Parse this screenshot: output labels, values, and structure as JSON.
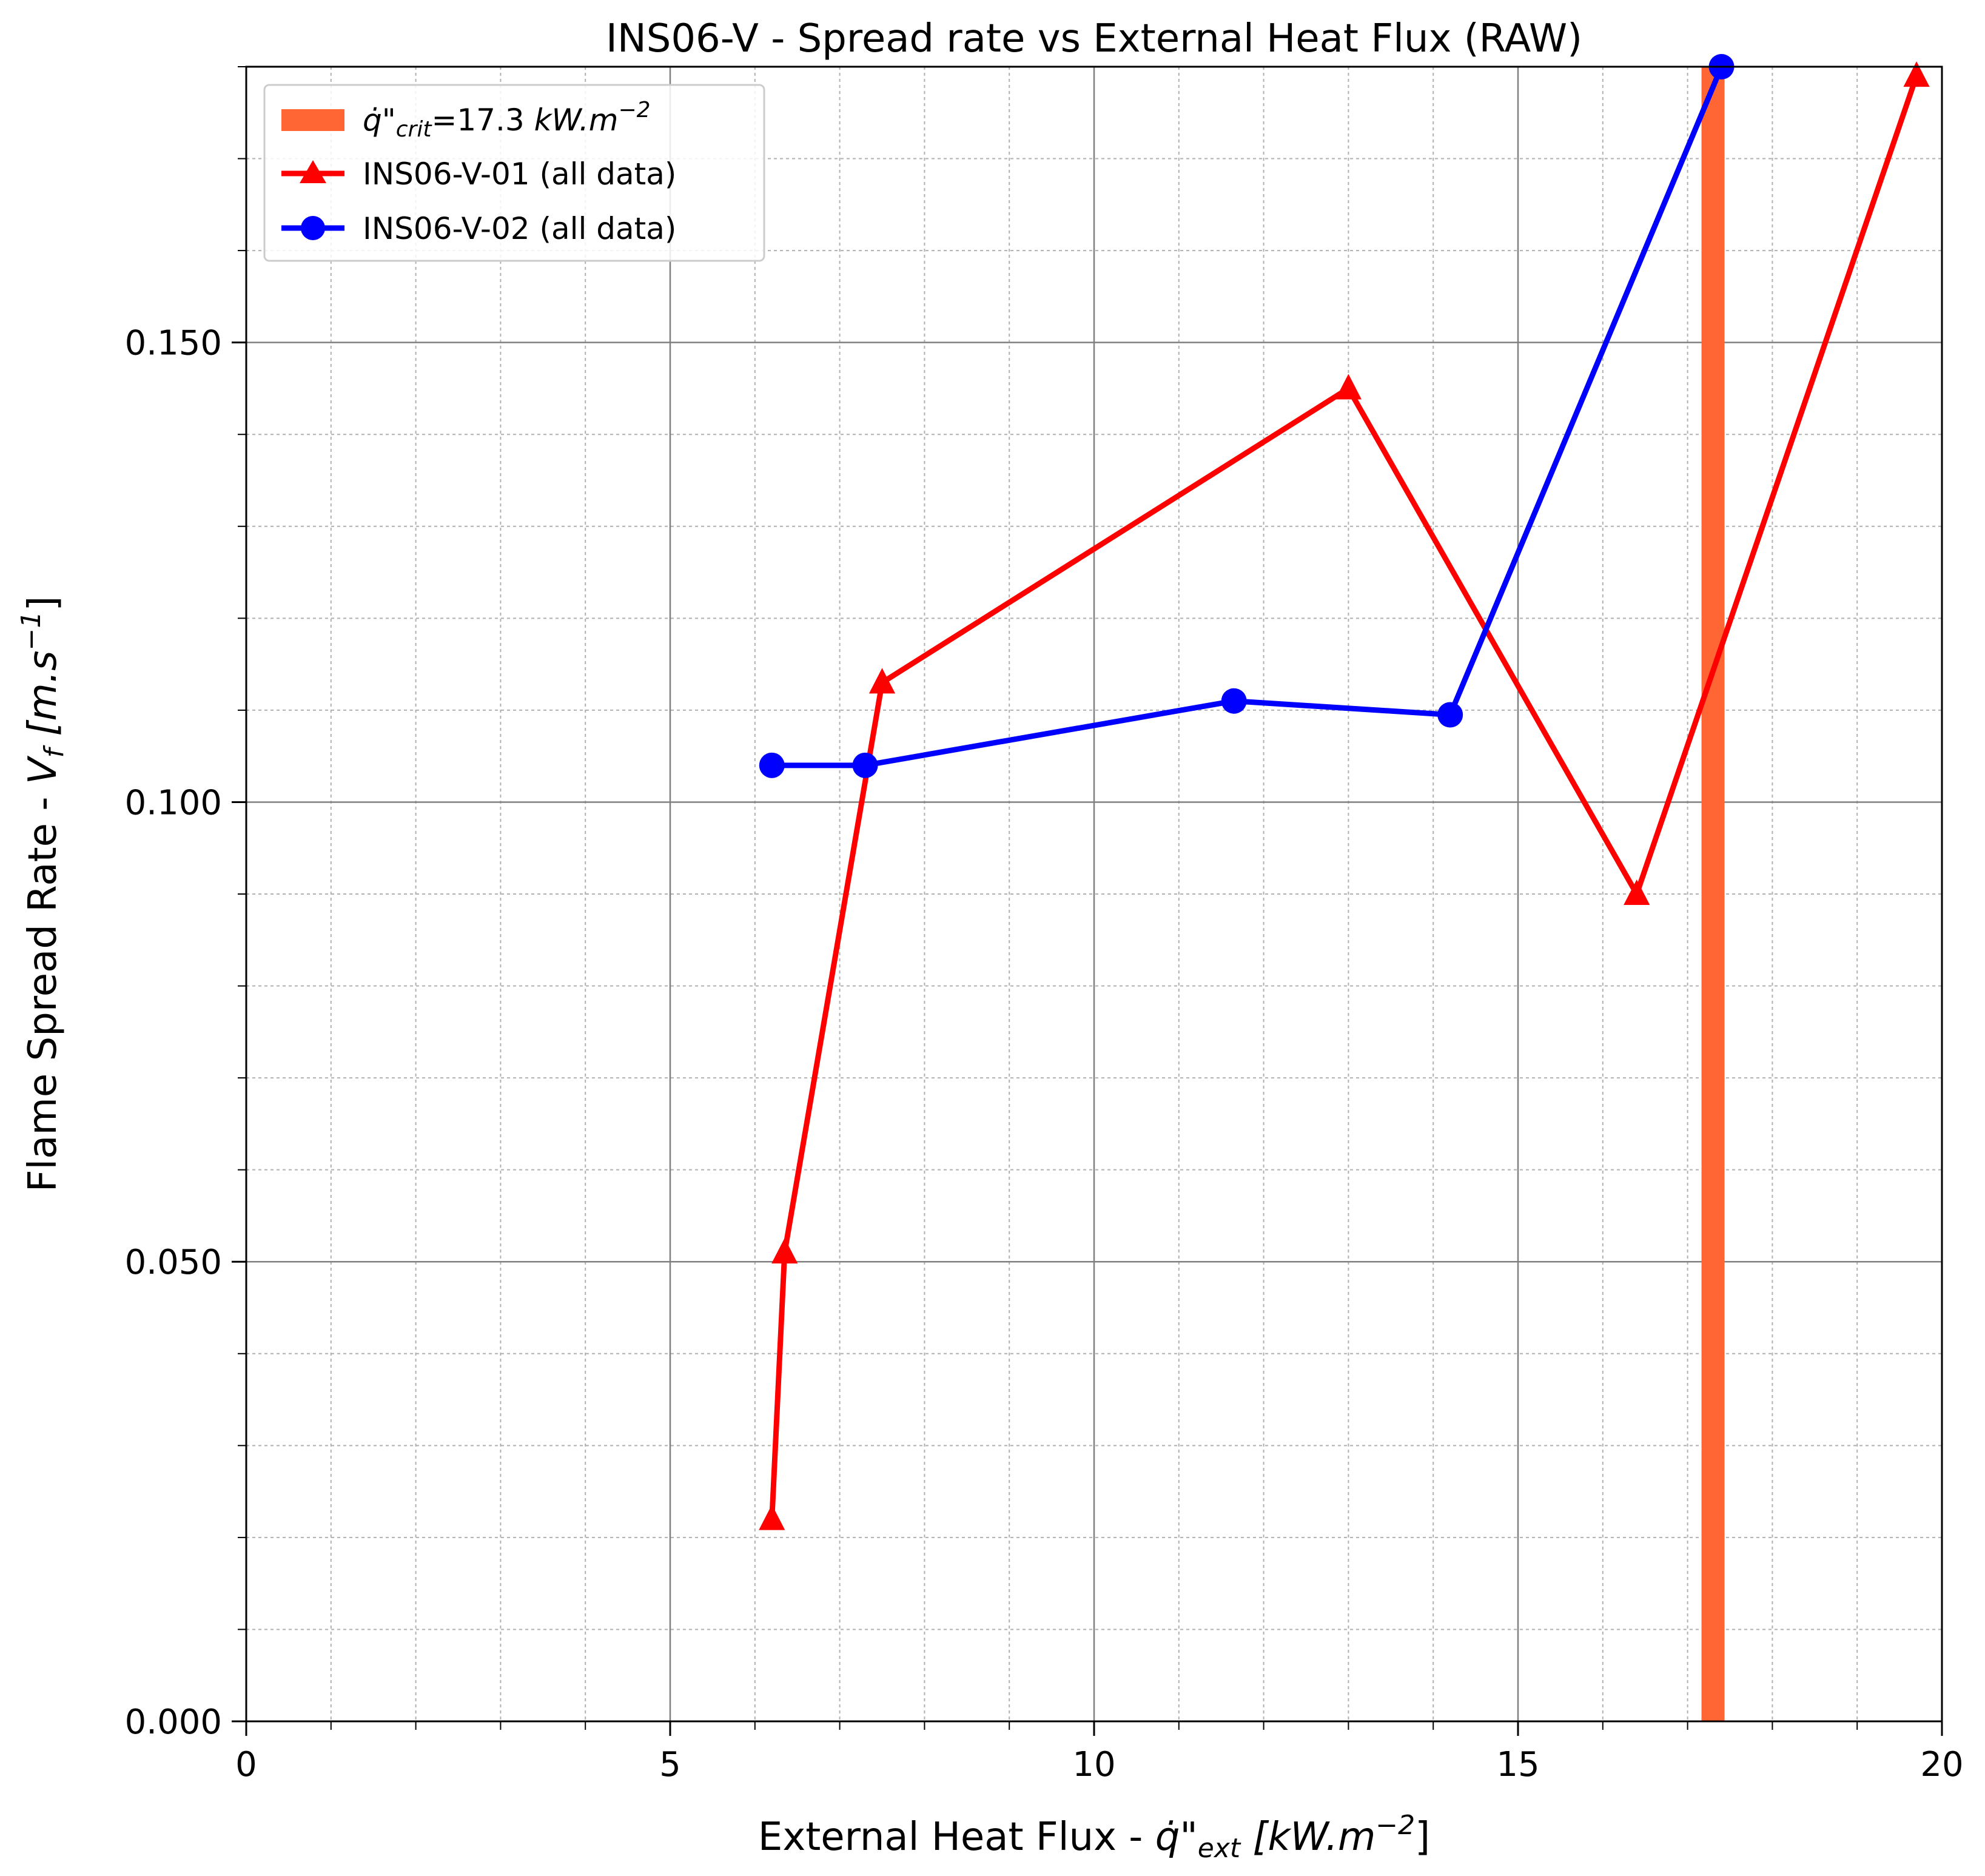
{
  "chart_data": {
    "type": "line",
    "title": "INS06-V - Spread rate vs External Heat Flux (RAW)",
    "xlabel_main": "External Heat Flux - ",
    "xlabel_q": "q̇\"",
    "xlabel_sub": "ext",
    "xlabel_unit": " [kW.m",
    "xlabel_exp": "−2",
    "xlabel_close": "]",
    "ylabel_main": "Flame Spread Rate - ",
    "ylabel_v": "V",
    "ylabel_sub": "f",
    "ylabel_unit": " [m.s",
    "ylabel_exp": "−1",
    "ylabel_close": "]",
    "xlim": [
      0,
      20
    ],
    "ylim": [
      0,
      0.18
    ],
    "x_ticks": [
      0,
      5,
      10,
      15,
      20
    ],
    "x_tick_labels": [
      "0",
      "5",
      "10",
      "15",
      "20"
    ],
    "y_ticks": [
      0,
      0.05,
      0.1,
      0.15
    ],
    "y_tick_labels": [
      "0.000",
      "0.050",
      "0.100",
      "0.150"
    ],
    "x_minor_step": 1,
    "y_minor_step": 0.01,
    "grid": true,
    "legend_position": "top-left",
    "critical_flux": {
      "x": 17.3,
      "label_q": "q̇\"",
      "label_sub": "crit",
      "label_eq": "=17.3 ",
      "label_unit": "kW.m",
      "label_exp": "−2",
      "color": "#ff6633"
    },
    "series": [
      {
        "name": "INS06-V-01 (all data)",
        "color": "#ff0000",
        "marker": "triangle",
        "x": [
          6.2,
          6.35,
          7.5,
          13.0,
          16.4,
          19.7
        ],
        "y": [
          0.022,
          0.051,
          0.113,
          0.145,
          0.09,
          0.179
        ]
      },
      {
        "name": "INS06-V-02 (all data)",
        "color": "#0000ff",
        "marker": "circle",
        "x": [
          6.2,
          7.3,
          11.65,
          14.2,
          17.4
        ],
        "y": [
          0.104,
          0.104,
          0.111,
          0.1095,
          0.18
        ]
      }
    ]
  }
}
